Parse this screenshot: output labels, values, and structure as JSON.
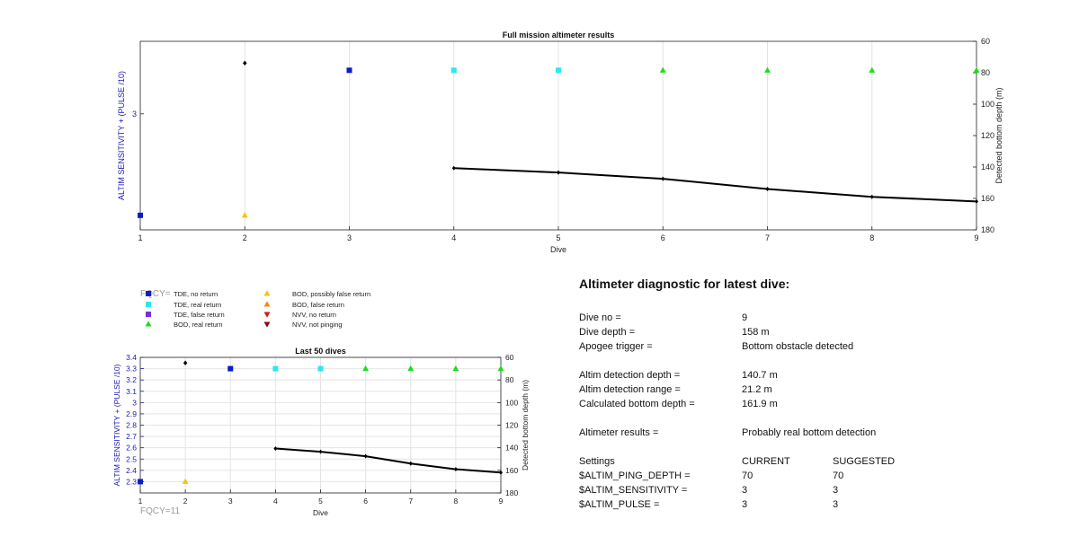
{
  "colors": {
    "tde_no_return": "#0a1fc4",
    "tde_real_return": "#2ee6ee",
    "tde_false_return": "#7b2fe0",
    "bod_real_return": "#18e018",
    "bod_possibly_false": "#f2c417",
    "bod_false_return": "#ee8a12",
    "nvv_no_return": "#d41a1a",
    "nvv_not_pinging": "#8a0d0d",
    "axis_left": "#1a1ab0",
    "depth_line": "#000000"
  },
  "legend": {
    "items": [
      {
        "label": "TDE, no return",
        "marker": "square",
        "color_key": "tde_no_return"
      },
      {
        "label": "TDE, real return",
        "marker": "square",
        "color_key": "tde_real_return"
      },
      {
        "label": "TDE, false return",
        "marker": "square",
        "color_key": "tde_false_return"
      },
      {
        "label": "BOD, real return",
        "marker": "triangle-up",
        "color_key": "bod_real_return"
      },
      {
        "label": "BOD, possibly false return",
        "marker": "triangle-up",
        "color_key": "bod_possibly_false"
      },
      {
        "label": "BOD, false return",
        "marker": "triangle-up",
        "color_key": "bod_false_return"
      },
      {
        "label": "NVV, no return",
        "marker": "triangle-down",
        "color_key": "nvv_no_return"
      },
      {
        "label": "NVV, not pinging",
        "marker": "triangle-down",
        "color_key": "nvv_not_pinging"
      }
    ],
    "overlay_text": "FQCY="
  },
  "chart_data": [
    {
      "type": "scatter",
      "title": "Full mission altimeter results",
      "xlabel": "Dive",
      "ylabel_left": "ALTIM SENSITIVITY + (PULSE /10)",
      "ylabel_right": "Detected bottom depth (m)",
      "xlim": [
        1,
        9
      ],
      "ylim_left": [
        2.2,
        3.5
      ],
      "ylim_right": [
        180,
        60
      ],
      "x_ticks": [
        "1",
        "2",
        "3",
        "4",
        "5",
        "6",
        "7",
        "8",
        "9"
      ],
      "y_ticks_left": [
        "3"
      ],
      "y_ticks_right": [
        "60",
        "80",
        "100",
        "120",
        "140",
        "160",
        "180"
      ],
      "grid": "vertical",
      "series": [
        {
          "category": "tde_no_return",
          "marker": "square",
          "points": [
            [
              1,
              2.3
            ],
            [
              3,
              3.3
            ]
          ]
        },
        {
          "category": "tde_real_return",
          "marker": "square",
          "points": [
            [
              4,
              3.3
            ],
            [
              5,
              3.3
            ]
          ]
        },
        {
          "category": "bod_real_return",
          "marker": "triangle-up",
          "points": [
            [
              6,
              3.3
            ],
            [
              7,
              3.3
            ],
            [
              8,
              3.3
            ],
            [
              9,
              3.3
            ]
          ]
        },
        {
          "category": "bod_possibly_false",
          "marker": "triangle-up",
          "points": [
            [
              2,
              2.3
            ]
          ]
        }
      ],
      "extra_points": [
        [
          2,
          3.35
        ]
      ],
      "depth_line": {
        "x": [
          4,
          5,
          6,
          7,
          8,
          9
        ],
        "y": [
          140.7,
          143.5,
          147.5,
          154,
          159,
          161.9
        ]
      }
    },
    {
      "type": "scatter",
      "title": "Last 50 dives",
      "xlabel": "Dive",
      "ylabel_left": "ALTIM SENSITIVITY + (PULSE /10)",
      "ylabel_right": "Detected bottom depth (m)",
      "xlim": [
        1,
        9
      ],
      "ylim_left": [
        2.2,
        3.4
      ],
      "ylim_right": [
        180,
        60
      ],
      "x_ticks": [
        "1",
        "2",
        "3",
        "4",
        "5",
        "6",
        "7",
        "8",
        "9"
      ],
      "y_ticks_left": [
        "2.3",
        "2.4",
        "2.5",
        "2.6",
        "2.7",
        "2.8",
        "2.9",
        "3",
        "3.1",
        "3.2",
        "3.3",
        "3.4"
      ],
      "y_ticks_right": [
        "60",
        "80",
        "100",
        "120",
        "140",
        "160",
        "180"
      ],
      "grid": "both",
      "annotation": "FQCY=11",
      "series": [
        {
          "category": "tde_no_return",
          "marker": "square",
          "points": [
            [
              1,
              2.3
            ],
            [
              3,
              3.3
            ]
          ]
        },
        {
          "category": "tde_real_return",
          "marker": "square",
          "points": [
            [
              4,
              3.3
            ],
            [
              5,
              3.3
            ]
          ]
        },
        {
          "category": "bod_real_return",
          "marker": "triangle-up",
          "points": [
            [
              6,
              3.3
            ],
            [
              7,
              3.3
            ],
            [
              8,
              3.3
            ],
            [
              9,
              3.3
            ]
          ]
        },
        {
          "category": "bod_possibly_false",
          "marker": "triangle-up",
          "points": [
            [
              2,
              2.3
            ]
          ]
        }
      ],
      "extra_points": [
        [
          2,
          3.35
        ]
      ],
      "depth_line": {
        "x": [
          4,
          5,
          6,
          7,
          8,
          9
        ],
        "y": [
          140.7,
          143.5,
          147.5,
          154,
          159,
          161.9
        ]
      }
    }
  ],
  "diagnostic": {
    "title": "Altimeter diagnostic for latest dive:",
    "dive_no_label": "Dive no =",
    "dive_no_value": "9",
    "dive_depth_label": "Dive depth =",
    "dive_depth_value": "158 m",
    "apogee_label": "Apogee trigger =",
    "apogee_value": "Bottom obstacle detected",
    "altim_det_depth_label": "Altim detection depth =",
    "altim_det_depth_value": "140.7 m",
    "altim_det_range_label": "Altim detection range =",
    "altim_det_range_value": "21.2 m",
    "calc_bottom_label": "Calculated bottom depth =",
    "calc_bottom_value": "161.9 m",
    "results_label": "Altimeter results =",
    "results_value": "Probably real bottom detection",
    "settings_label": "Settings",
    "current_label": "CURRENT",
    "suggested_label": "SUGGESTED",
    "ping_depth_label": "$ALTIM_PING_DEPTH =",
    "ping_depth_current": "70",
    "ping_depth_suggested": "70",
    "sensitivity_label": "$ALTIM_SENSITIVITY =",
    "sensitivity_current": "3",
    "sensitivity_suggested": "3",
    "pulse_label": "$ALTIM_PULSE =",
    "pulse_current": "3",
    "pulse_suggested": "3"
  }
}
